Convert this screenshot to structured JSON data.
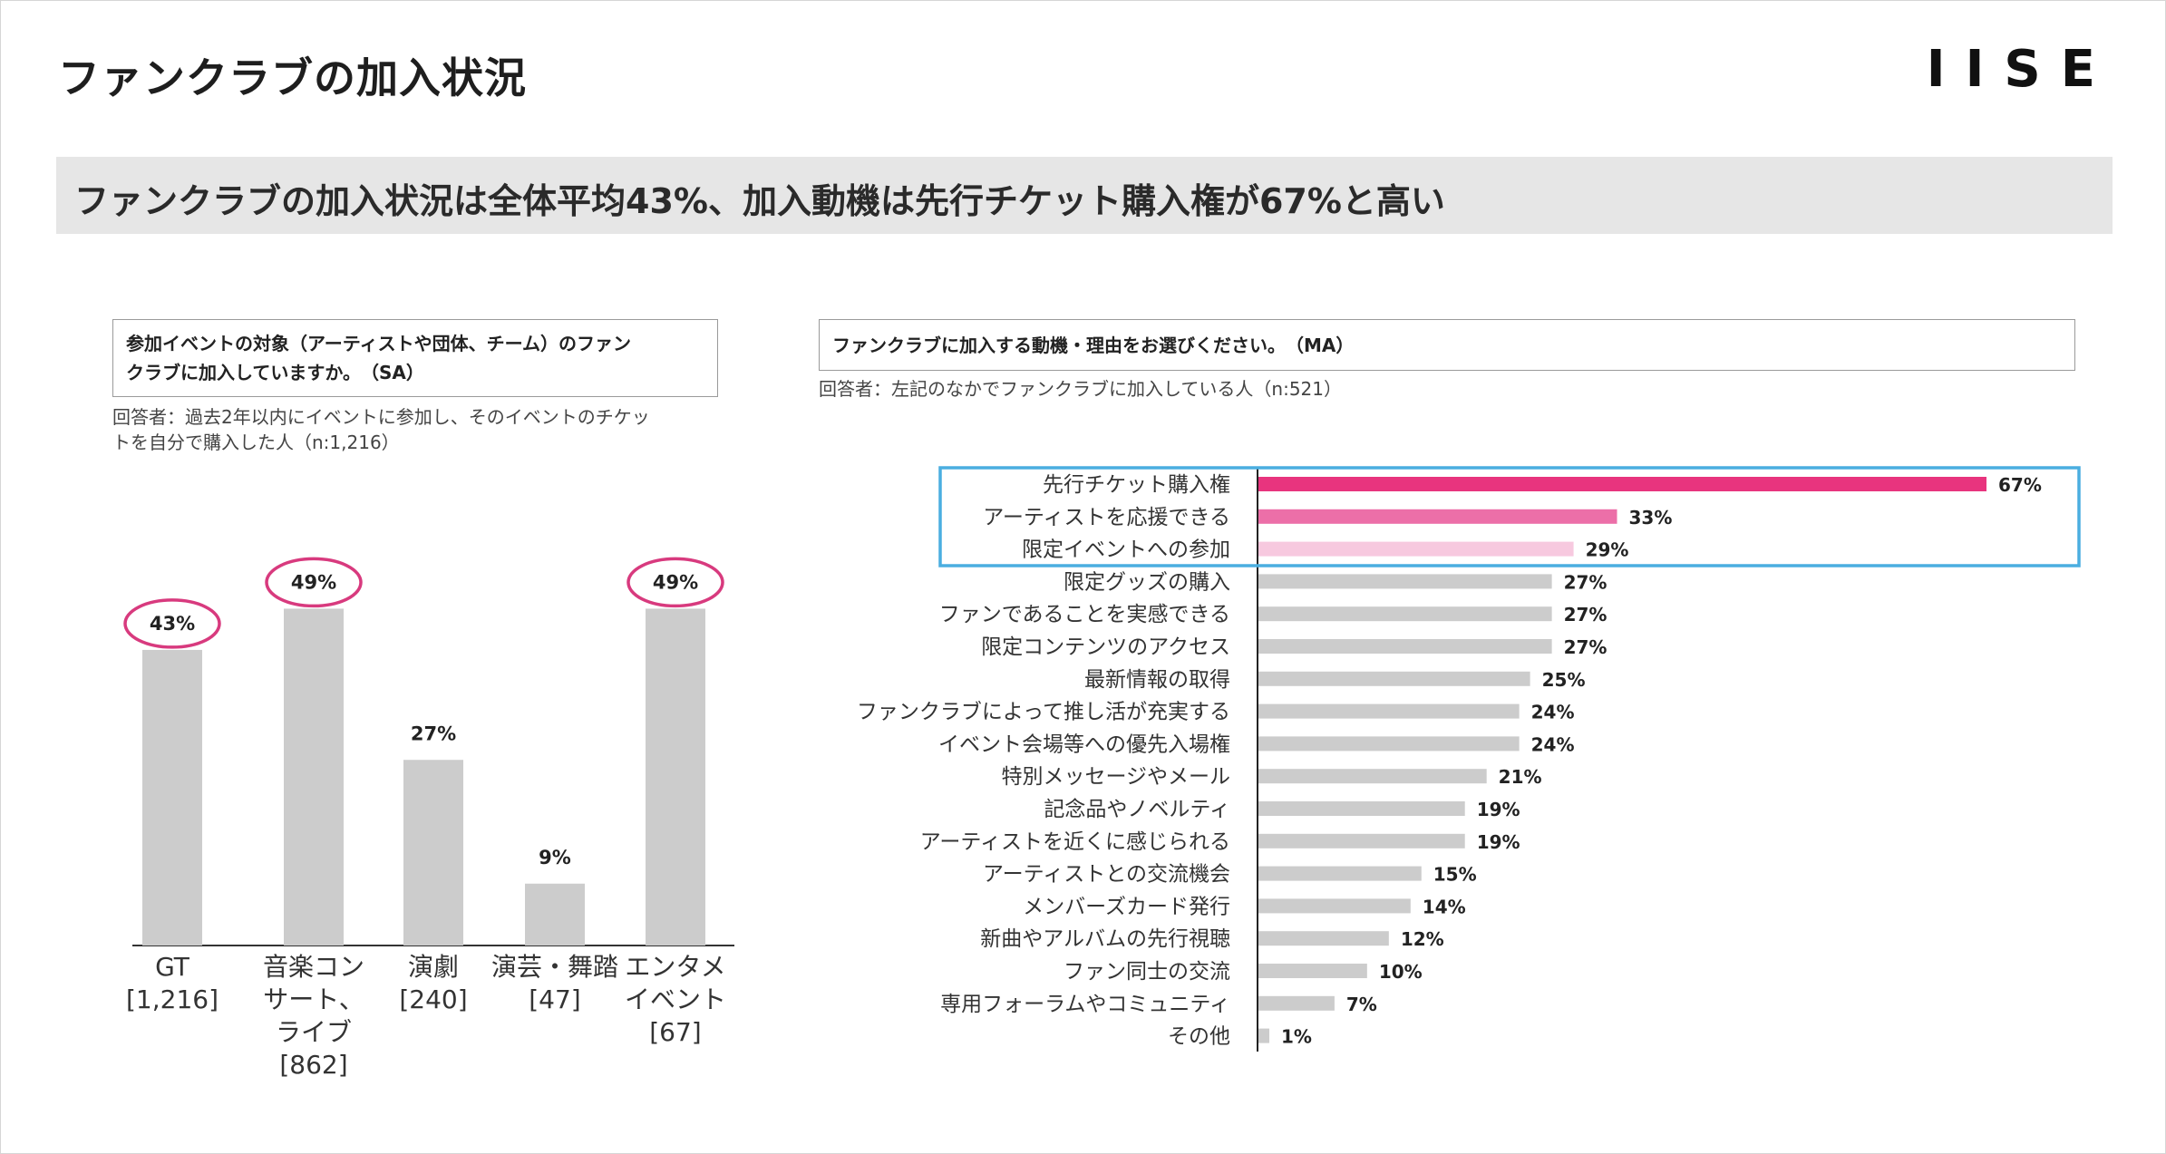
{
  "header": {
    "title": "ファンクラブの加入状況",
    "logo": "IISE",
    "banner": "ファンクラブの加入状況は全体平均43%、加入動機は先行チケット購入権が67%と高い"
  },
  "left_panel": {
    "question_line1": "参加イベントの対象（アーティストや団体、チーム）のファン",
    "question_line2": "クラブに加入していますか。　（SA）",
    "note_line1": "回答者：過去2年以内にイベントに参加し、そのイベントのチケッ",
    "note_line2": "トを自分で購入した人（n:1,216）"
  },
  "right_panel": {
    "question": "ファンクラブに加入する動機・理由をお選びください。　（MA）",
    "note": "回答者：左記のなかでファンクラブに加入している人（n:521）"
  },
  "colors": {
    "bar_gray": "#cccccc",
    "accent_magenta": "#e8347e",
    "accent_pink": "#ec6fa8",
    "accent_light_pink": "#f7c9df",
    "highlight_box": "#4aaee0",
    "ellipse": "#d83a7e"
  },
  "chart_data": [
    {
      "type": "bar",
      "categories": [
        [
          "GT",
          "[1,216]"
        ],
        [
          "音楽コン",
          "サート、",
          "ライブ",
          "[862]"
        ],
        [
          "演劇",
          "[240]"
        ],
        [
          "演芸・舞踏",
          "[47]"
        ],
        [
          "エンタメ",
          "イベント",
          "[67]"
        ]
      ],
      "values": [
        43,
        49,
        27,
        9,
        49
      ],
      "data_labels": [
        "43%",
        "49%",
        "27%",
        "9%",
        "49%"
      ],
      "highlighted": [
        0,
        1,
        4
      ],
      "ylim": [
        0,
        60
      ]
    },
    {
      "type": "bar",
      "orientation": "horizontal",
      "categories": [
        "先行チケット購入権",
        "アーティストを応援できる",
        "限定イベントへの参加",
        "限定グッズの購入",
        "ファンであることを実感できる",
        "限定コンテンツのアクセス",
        "最新情報の取得",
        "ファンクラブによって推し活が充実する",
        "イベント会場等への優先入場権",
        "特別メッセージやメール",
        "記念品やノベルティ",
        "アーティストを近くに感じられる",
        "アーティストとの交流機会",
        "メンバーズカード発行",
        "新曲やアルバムの先行視聴",
        "ファン同士の交流",
        "専用フォーラムやコミュニティ",
        "その他"
      ],
      "values": [
        67,
        33,
        29,
        27,
        27,
        27,
        25,
        24,
        24,
        21,
        19,
        19,
        15,
        14,
        12,
        10,
        7,
        1
      ],
      "data_labels": [
        "67%",
        "33%",
        "29%",
        "27%",
        "27%",
        "27%",
        "25%",
        "24%",
        "24%",
        "21%",
        "19%",
        "19%",
        "15%",
        "14%",
        "12%",
        "10%",
        "7%",
        "1%"
      ],
      "highlighted": [
        0,
        1,
        2
      ],
      "xlim": [
        0,
        70
      ]
    }
  ]
}
